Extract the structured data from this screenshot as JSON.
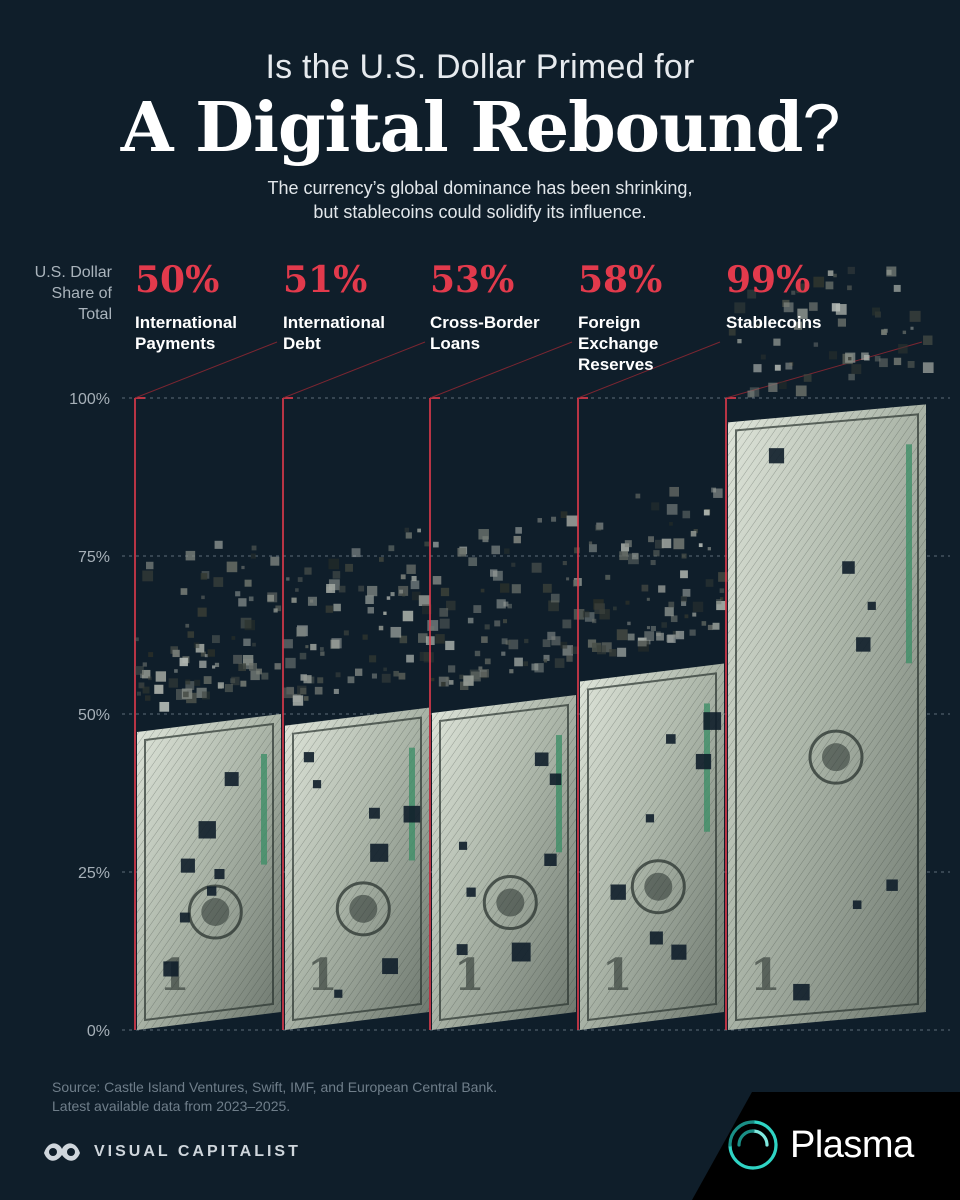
{
  "header": {
    "kicker": "Is the U.S. Dollar Primed for",
    "title_main": "A Digital Rebound",
    "title_mark": "?",
    "subtitle_line1": "The currency’s global dominance has been shrinking,",
    "subtitle_line2": "but stablecoins could solidify its influence."
  },
  "y_axis_label": [
    "U.S. Dollar",
    "Share of",
    "Total"
  ],
  "chart_data": {
    "type": "bar",
    "title": "A Digital Rebound?",
    "ylabel": "U.S. Dollar Share of Total",
    "ylim": [
      0,
      100
    ],
    "yticks": [
      0,
      25,
      50,
      75,
      100
    ],
    "ytick_labels": [
      "0%",
      "25%",
      "50%",
      "75%",
      "100%"
    ],
    "grid": true,
    "categories": [
      [
        "International",
        "Payments"
      ],
      [
        "International",
        "Debt"
      ],
      [
        "Cross-Border",
        "Loans"
      ],
      [
        "Foreign",
        "Exchange",
        "Reserves"
      ],
      [
        "Stablecoins"
      ]
    ],
    "values": [
      50,
      51,
      53,
      58,
      99
    ],
    "value_labels": [
      "50%",
      "51%",
      "53%",
      "58%",
      "99%"
    ]
  },
  "footer": {
    "source_line1": "Source: Castle Island Ventures, Swift, IMF, and European Central Bank.",
    "source_line2": "Latest available data from 2023–2025.",
    "brand": "VISUAL CAPITALIST",
    "partner": "Plasma"
  },
  "colors": {
    "background": "#0f1e2a",
    "accent_red": "#e23a4c",
    "bill_light": "#c9d1c4",
    "bill_dark": "#2a332f",
    "bill_green": "#3f8f68"
  }
}
